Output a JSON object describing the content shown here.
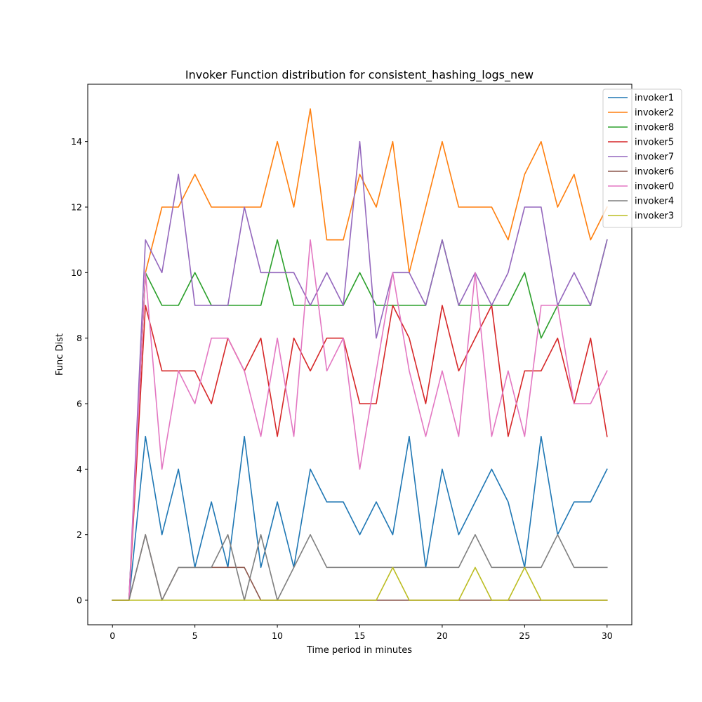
{
  "chart_data": {
    "type": "line",
    "title": "Invoker Function distribution for consistent_hashing_logs_new",
    "xlabel": "Time period in minutes",
    "ylabel": "Func Dist",
    "xlim": [
      -1.5,
      31.5
    ],
    "ylim": [
      -0.75,
      15.75
    ],
    "xticks": [
      0,
      5,
      10,
      15,
      20,
      25,
      30
    ],
    "yticks": [
      0,
      2,
      4,
      6,
      8,
      10,
      12,
      14
    ],
    "grid": false,
    "legend_position": "top-right",
    "x": [
      0,
      1,
      2,
      3,
      4,
      5,
      6,
      7,
      8,
      9,
      10,
      11,
      12,
      13,
      14,
      15,
      16,
      17,
      18,
      19,
      20,
      21,
      22,
      23,
      24,
      25,
      26,
      27,
      28,
      29,
      30
    ],
    "series": [
      {
        "name": "invoker1",
        "color": "#1f77b4",
        "values": [
          0,
          0,
          5,
          2,
          4,
          1,
          3,
          1,
          5,
          1,
          3,
          1,
          4,
          3,
          3,
          2,
          3,
          2,
          5,
          1,
          4,
          2,
          3,
          4,
          3,
          1,
          5,
          2,
          3,
          3,
          4
        ]
      },
      {
        "name": "invoker2",
        "color": "#ff7f0e",
        "values": [
          0,
          0,
          10,
          12,
          12,
          13,
          12,
          12,
          12,
          12,
          14,
          12,
          15,
          11,
          11,
          13,
          12,
          14,
          10,
          12,
          14,
          12,
          12,
          12,
          11,
          13,
          14,
          12,
          13,
          11,
          12
        ]
      },
      {
        "name": "invoker8",
        "color": "#2ca02c",
        "values": [
          0,
          0,
          10,
          9,
          9,
          10,
          9,
          9,
          9,
          9,
          11,
          9,
          9,
          9,
          9,
          10,
          9,
          9,
          9,
          9,
          11,
          9,
          9,
          9,
          9,
          10,
          8,
          9,
          9,
          9,
          11
        ]
      },
      {
        "name": "invoker5",
        "color": "#d62728",
        "values": [
          0,
          0,
          9,
          7,
          7,
          7,
          6,
          8,
          7,
          8,
          5,
          8,
          7,
          8,
          8,
          6,
          6,
          9,
          8,
          6,
          9,
          7,
          8,
          9,
          5,
          7,
          7,
          8,
          6,
          8,
          5
        ]
      },
      {
        "name": "invoker7",
        "color": "#9467bd",
        "values": [
          0,
          0,
          11,
          10,
          13,
          9,
          9,
          9,
          12,
          10,
          10,
          10,
          9,
          10,
          9,
          14,
          8,
          10,
          10,
          9,
          11,
          9,
          10,
          9,
          10,
          12,
          12,
          9,
          10,
          9,
          11
        ]
      },
      {
        "name": "invoker6",
        "color": "#8c564b",
        "values": [
          0,
          0,
          2,
          0,
          1,
          1,
          1,
          1,
          1,
          0,
          0,
          0,
          0,
          0,
          0,
          0,
          0,
          0,
          0,
          0,
          0,
          0,
          0,
          0,
          0,
          0,
          0,
          0,
          0,
          0,
          0
        ]
      },
      {
        "name": "invoker0",
        "color": "#e377c2",
        "values": [
          0,
          0,
          10,
          4,
          7,
          6,
          8,
          8,
          7,
          5,
          8,
          5,
          11,
          7,
          8,
          4,
          7,
          10,
          7,
          5,
          7,
          5,
          10,
          5,
          7,
          5,
          9,
          9,
          6,
          6,
          7
        ]
      },
      {
        "name": "invoker4",
        "color": "#7f7f7f",
        "values": [
          0,
          0,
          2,
          0,
          1,
          1,
          1,
          2,
          0,
          2,
          0,
          1,
          2,
          1,
          1,
          1,
          1,
          1,
          1,
          1,
          1,
          1,
          2,
          1,
          1,
          1,
          1,
          2,
          1,
          1,
          1
        ]
      },
      {
        "name": "invoker3",
        "color": "#bcbd22",
        "values": [
          0,
          0,
          0,
          0,
          0,
          0,
          0,
          0,
          0,
          0,
          0,
          0,
          0,
          0,
          0,
          0,
          0,
          1,
          0,
          0,
          0,
          0,
          1,
          0,
          0,
          1,
          0,
          0,
          0,
          0,
          0
        ]
      }
    ]
  }
}
